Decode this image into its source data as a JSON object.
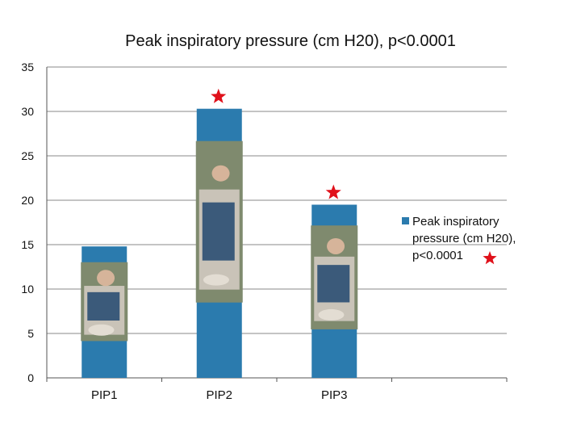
{
  "chart_data": {
    "type": "bar",
    "title": "Peak inspiratory pressure (cm H20), p<0.0001",
    "categories": [
      "PIP1",
      "PIP2",
      "PIP3"
    ],
    "series": [
      {
        "name": "Peak inspiratory pressure (cm H20), p<0.0001",
        "values": [
          14.8,
          30.3,
          19.5
        ]
      }
    ],
    "significant": [
      false,
      true,
      true
    ],
    "ylim": [
      0,
      35
    ],
    "yticks": [
      0,
      5,
      10,
      15,
      20,
      25,
      30,
      35
    ],
    "grid": true,
    "legend_position": "right",
    "colors": {
      "bar": "#2b7bae",
      "star": "#e0111b",
      "grid": "#8a8a8a",
      "axis": "#555555"
    },
    "photos": [
      "infant-in-cast-photo",
      "infant-in-cast-photo",
      "infant-in-cast-photo"
    ]
  }
}
